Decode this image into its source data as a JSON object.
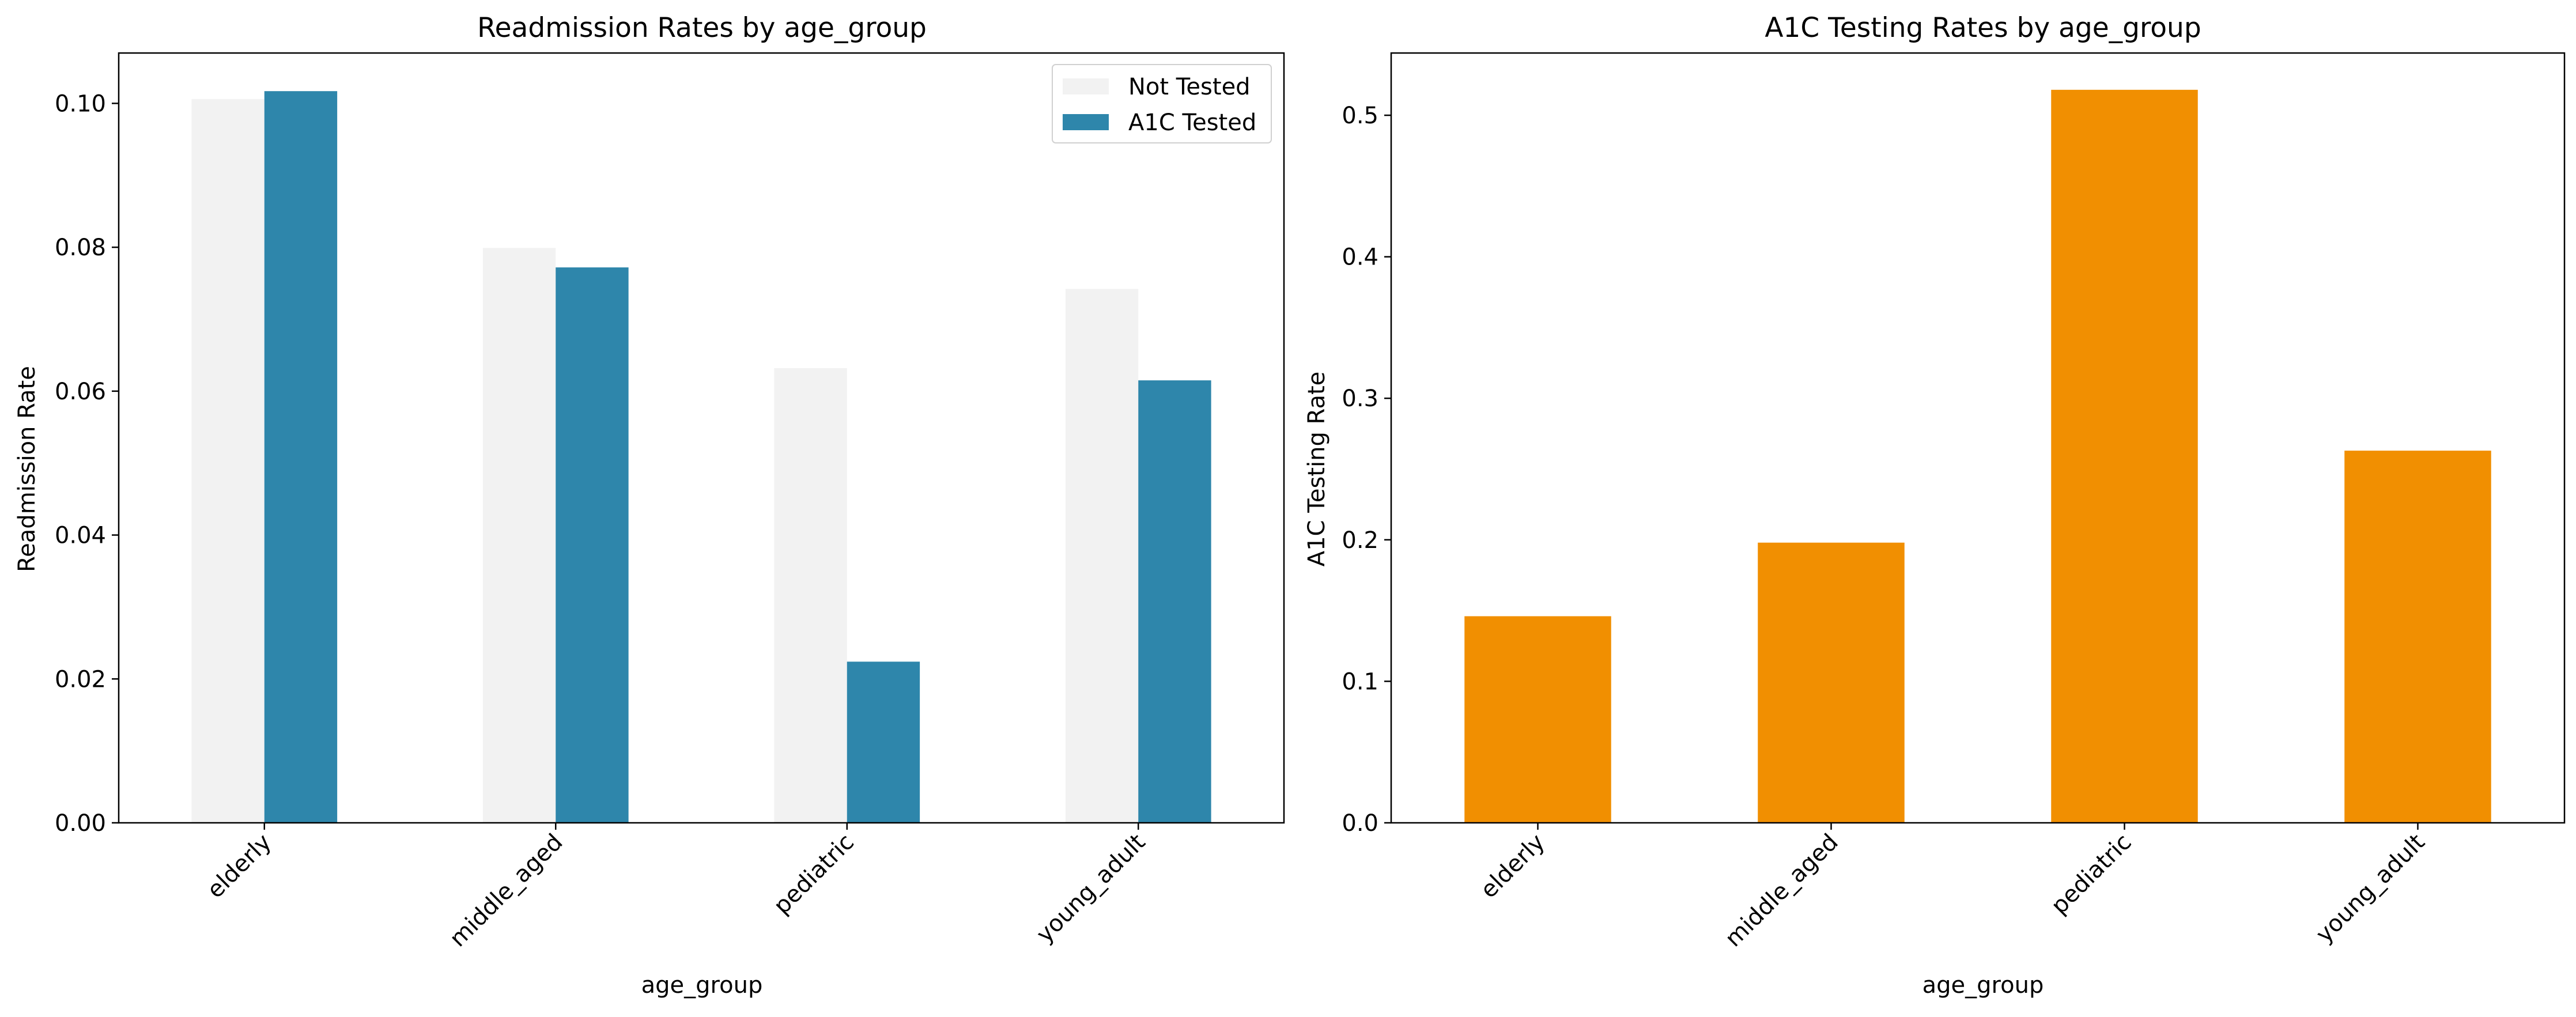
{
  "chart_data": [
    {
      "type": "bar",
      "title": "Readmission Rates by age_group",
      "xlabel": "age_group",
      "ylabel": "Readmission Rate",
      "categories": [
        "elderly",
        "middle_aged",
        "pediatric",
        "young_adult"
      ],
      "series": [
        {
          "name": "Not Tested",
          "values": [
            0.1006,
            0.0799,
            0.0632,
            0.0742
          ],
          "color": "#f2f2f2"
        },
        {
          "name": "A1C Tested",
          "values": [
            0.1017,
            0.0772,
            0.0224,
            0.0615
          ],
          "color": "#2e86ab"
        }
      ],
      "ylim": [
        0,
        0.107
      ],
      "yticks": [
        0.0,
        0.02,
        0.04,
        0.06,
        0.08,
        0.1
      ],
      "ytick_labels": [
        "0.00",
        "0.02",
        "0.04",
        "0.06",
        "0.08",
        "0.10"
      ],
      "legend": "top-right",
      "grid": false
    },
    {
      "type": "bar",
      "title": "A1C Testing Rates by age_group",
      "xlabel": "age_group",
      "ylabel": "A1C Testing Rate",
      "categories": [
        "elderly",
        "middle_aged",
        "pediatric",
        "young_adult"
      ],
      "series": [
        {
          "values": [
            0.146,
            0.198,
            0.518,
            0.263
          ],
          "color": "#f18f01"
        }
      ],
      "ylim": [
        0,
        0.544
      ],
      "yticks": [
        0.0,
        0.1,
        0.2,
        0.3,
        0.4,
        0.5
      ],
      "ytick_labels": [
        "0.0",
        "0.1",
        "0.2",
        "0.3",
        "0.4",
        "0.5"
      ],
      "grid": false
    }
  ]
}
